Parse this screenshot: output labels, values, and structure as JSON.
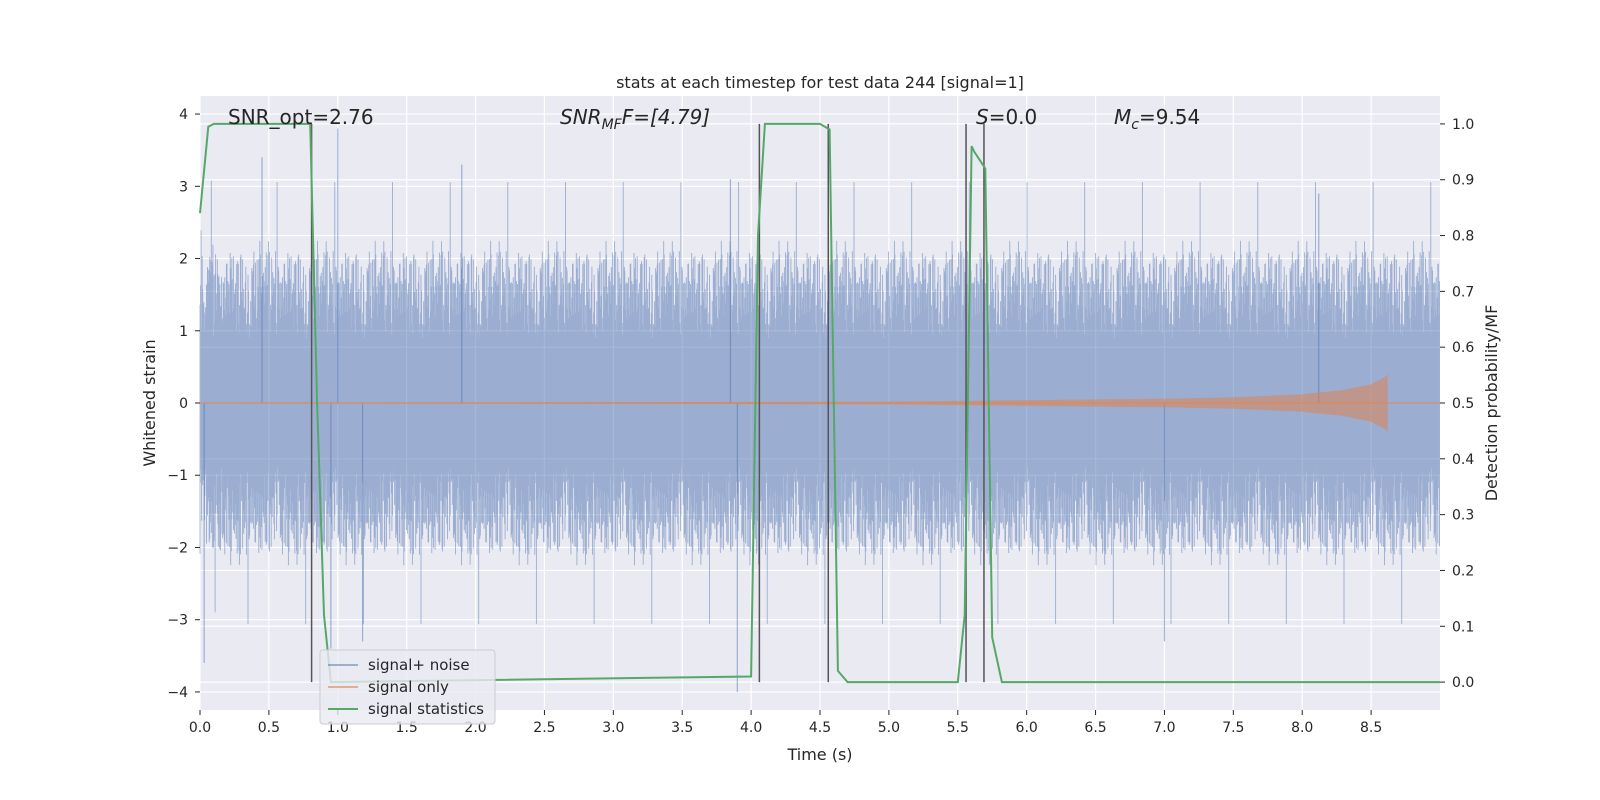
{
  "chart_data": {
    "type": "line",
    "title": "stats at each timestep for test data 244 [signal=1]",
    "xlabel": "Time (s)",
    "ylabel_left": "Whitened strain",
    "ylabel_right": "Detection probability/MF",
    "xlim": [
      0.0,
      9.0
    ],
    "ylim_left": [
      -4.25,
      4.25
    ],
    "ylim_right": [
      -0.05,
      1.05
    ],
    "xticks": [
      "0.0",
      "0.5",
      "1.0",
      "1.5",
      "2.0",
      "2.5",
      "3.0",
      "3.5",
      "4.0",
      "4.5",
      "5.0",
      "5.5",
      "6.0",
      "6.5",
      "7.0",
      "7.5",
      "8.0",
      "8.5"
    ],
    "yticks_left": [
      "4",
      "3",
      "2",
      "1",
      "0",
      "−1",
      "−2",
      "−3",
      "−4"
    ],
    "yticks_right": [
      "1.0",
      "0.9",
      "0.8",
      "0.7",
      "0.6",
      "0.5",
      "0.4",
      "0.3",
      "0.2",
      "0.1",
      "0.0"
    ],
    "grid": true,
    "legend_position": "lower-left",
    "annotations": {
      "snr_opt": "SNR_opt=2.76",
      "snr_mf_base": "SNR",
      "snr_mf_sub": "MF",
      "snr_mf_value": "F=[4.79]",
      "s_base": "S",
      "s_value": "=0.0",
      "mc_base": "M",
      "mc_sub": "c",
      "mc_value": "=9.54"
    },
    "series": [
      {
        "name": "signal+ noise",
        "color": "#4c72b0",
        "axis": "left",
        "description_values": "noise amplitude envelope, approx ±1.5 to ±3.8 peaks",
        "peak_max": [
          3.8,
          3.4,
          3.3,
          3.1,
          2.9
        ],
        "peak_min": [
          -3.3,
          -4.0,
          -3.6,
          -3.4,
          -3.3
        ]
      },
      {
        "name": "signal only",
        "color": "#dd8452",
        "axis": "left",
        "x": [
          0.0,
          5.0,
          6.0,
          7.0,
          7.5,
          8.0,
          8.3,
          8.5,
          8.6,
          8.62
        ],
        "amplitude": [
          0.0,
          0.02,
          0.04,
          0.06,
          0.08,
          0.12,
          0.18,
          0.26,
          0.36,
          0.4
        ]
      },
      {
        "name": "signal statistics",
        "color": "#55a868",
        "axis": "right",
        "x": [
          0.0,
          0.06,
          0.1,
          0.15,
          0.8,
          0.85,
          0.9,
          0.95,
          4.0,
          4.05,
          4.1,
          4.5,
          4.57,
          4.63,
          4.7,
          5.5,
          5.55,
          5.6,
          5.62,
          5.7,
          5.75,
          5.82,
          9.0
        ],
        "values": [
          0.84,
          0.995,
          1.0,
          1.0,
          1.0,
          0.5,
          0.12,
          0.0,
          0.01,
          0.8,
          1.0,
          1.0,
          0.99,
          0.02,
          0.0,
          0.0,
          0.12,
          0.96,
          0.95,
          0.92,
          0.08,
          0.0,
          0.0
        ]
      }
    ],
    "vertical_lines_x": [
      0.81,
      4.06,
      4.56,
      5.56,
      5.69
    ],
    "legend": {
      "entries": [
        "signal+ noise",
        "signal only",
        "signal statistics"
      ]
    }
  }
}
